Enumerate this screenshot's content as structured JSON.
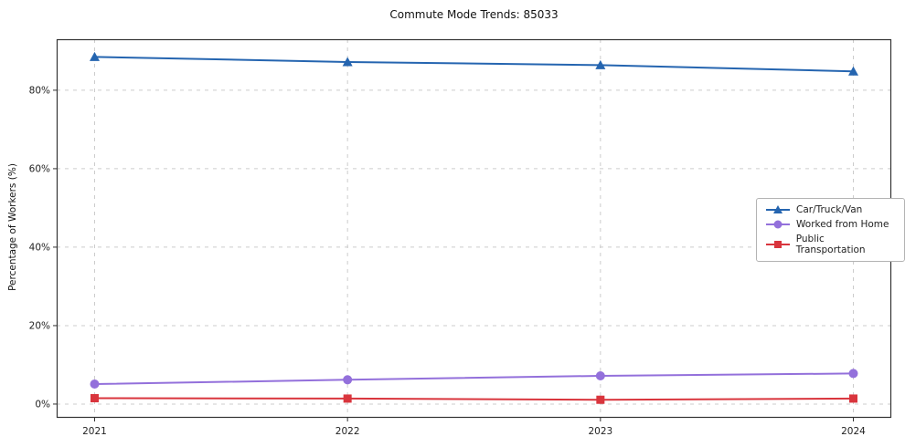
{
  "chart_data": {
    "type": "line",
    "title": "Commute Mode Trends: 85033",
    "xlabel": "",
    "ylabel": "Percentage of Workers (%)",
    "x": [
      2021,
      2022,
      2023,
      2024
    ],
    "x_labels": [
      "2021",
      "2022",
      "2023",
      "2024"
    ],
    "yticks": [
      0,
      20,
      40,
      60,
      80
    ],
    "ytick_labels": [
      "0%",
      "20%",
      "40%",
      "60%",
      "80%"
    ],
    "xlim": [
      2020.85,
      2024.15
    ],
    "ylim": [
      -3.5,
      93
    ],
    "grid": true,
    "grid_style": "dashed",
    "legend_position": "center-right",
    "series": [
      {
        "name": "Car/Truck/Van",
        "marker": "triangle",
        "color": "#2565b0",
        "values": [
          88.5,
          87.2,
          86.4,
          84.8
        ]
      },
      {
        "name": "Worked from Home",
        "marker": "circle",
        "color": "#9370db",
        "values": [
          5.1,
          6.2,
          7.2,
          7.8
        ]
      },
      {
        "name": "Public Transportation",
        "marker": "square",
        "color": "#d9353d",
        "values": [
          1.5,
          1.4,
          1.1,
          1.4
        ]
      }
    ],
    "colors": {
      "grid": "#cccccc",
      "frame": "#333333",
      "background": "#ffffff"
    }
  }
}
